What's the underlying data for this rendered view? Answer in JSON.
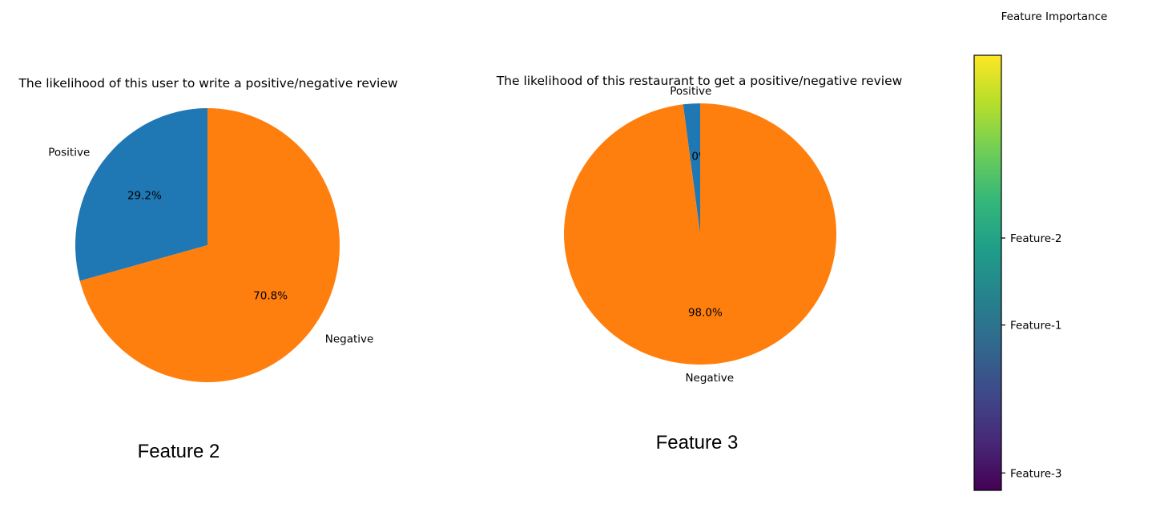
{
  "chart_data": [
    {
      "type": "pie",
      "title": "The likelihood of this user to write a positive/negative review",
      "caption": "Feature 2",
      "slices": [
        {
          "label": "Positive",
          "value": 29.2,
          "pct_label": "29.2%",
          "color": "#1f77b4"
        },
        {
          "label": "Negative",
          "value": 70.8,
          "pct_label": "70.8%",
          "color": "#ff7f0e"
        }
      ],
      "start_angle_deg": 90,
      "direction": "counterclockwise"
    },
    {
      "type": "pie",
      "title": "The likelihood of this restaurant to get a positive/negative review",
      "caption": "Feature 3",
      "slices": [
        {
          "label": "Positive",
          "value": 2.0,
          "pct_label": "2.0%",
          "color": "#1f77b4"
        },
        {
          "label": "Negative",
          "value": 98.0,
          "pct_label": "98.0%",
          "color": "#ff7f0e"
        }
      ],
      "start_angle_deg": 90,
      "direction": "counterclockwise"
    },
    {
      "type": "colorbar",
      "title": "Feature Importance",
      "colormap": "viridis",
      "colors": [
        "#440154",
        "#482878",
        "#3e4989",
        "#31688e",
        "#26828e",
        "#1f9e89",
        "#35b779",
        "#6ece58",
        "#b5de2b",
        "#fde725"
      ],
      "ticks": [
        {
          "label": "Feature-2",
          "value": 0.58
        },
        {
          "label": "Feature-1",
          "value": 0.38
        },
        {
          "label": "Feature-3",
          "value": 0.04
        }
      ],
      "range": [
        0,
        1
      ]
    }
  ]
}
